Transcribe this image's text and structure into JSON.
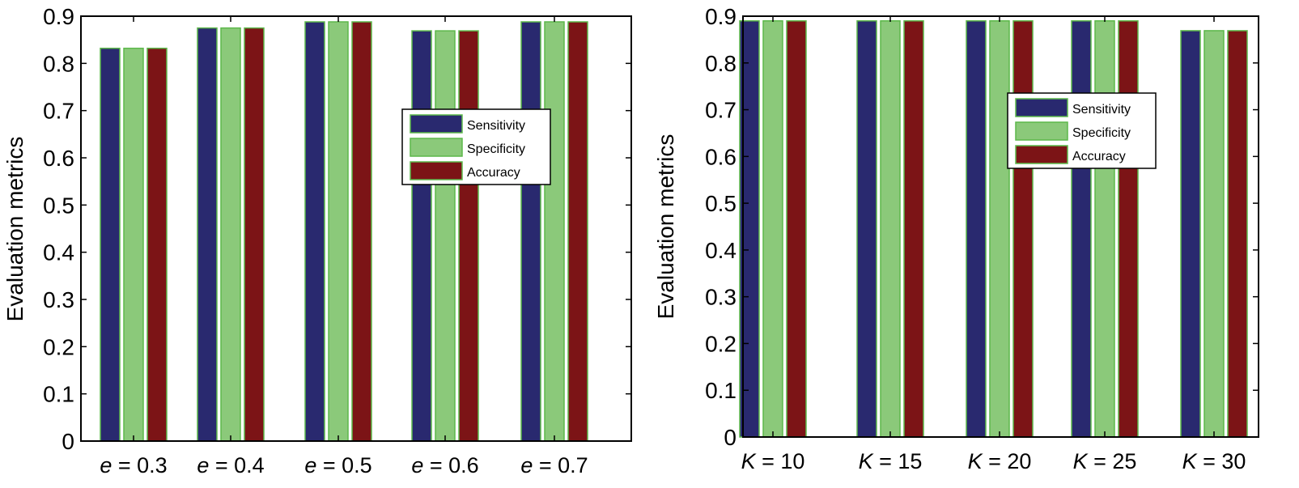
{
  "colors": {
    "Sensitivity": "#29296f",
    "Specificity": "#8bc97a",
    "Accuracy": "#7c1416",
    "edge": "#5cb84a"
  },
  "chart_data": [
    {
      "type": "bar",
      "xlabel": "",
      "ylabel": "Evaluation metrics",
      "categories": [
        "e = 0.3",
        "e = 0.4",
        "e = 0.5",
        "e = 0.6",
        "e = 0.7"
      ],
      "category_var": "e",
      "category_vals": [
        "0.3",
        "0.4",
        "0.5",
        "0.6",
        "0.7"
      ],
      "ylim": [
        0,
        0.9
      ],
      "yticks": [
        "0",
        "0.1",
        "0.2",
        "0.3",
        "0.4",
        "0.5",
        "0.6",
        "0.7",
        "0.8",
        "0.9"
      ],
      "legend_position": "center-right",
      "series": [
        {
          "name": "Sensitivity",
          "values": [
            0.832,
            0.875,
            0.888,
            0.869,
            0.888
          ]
        },
        {
          "name": "Specificity",
          "values": [
            0.832,
            0.875,
            0.888,
            0.869,
            0.888
          ]
        },
        {
          "name": "Accuracy",
          "values": [
            0.832,
            0.875,
            0.888,
            0.869,
            0.888
          ]
        }
      ]
    },
    {
      "type": "bar",
      "xlabel": "",
      "ylabel": "Evaluation metrics",
      "categories": [
        "K = 10",
        "K = 15",
        "K = 20",
        "K = 25",
        "K = 30"
      ],
      "category_var": "K",
      "category_vals": [
        "10",
        "15",
        "20",
        "25",
        "30"
      ],
      "ylim": [
        0,
        0.9
      ],
      "yticks": [
        "0",
        "0.1",
        "0.2",
        "0.3",
        "0.4",
        "0.5",
        "0.6",
        "0.7",
        "0.8",
        "0.9"
      ],
      "legend_position": "center",
      "series": [
        {
          "name": "Sensitivity",
          "values": [
            0.89,
            0.89,
            0.89,
            0.89,
            0.869
          ]
        },
        {
          "name": "Specificity",
          "values": [
            0.89,
            0.89,
            0.89,
            0.89,
            0.869
          ]
        },
        {
          "name": "Accuracy",
          "values": [
            0.89,
            0.89,
            0.89,
            0.89,
            0.869
          ]
        }
      ]
    }
  ]
}
